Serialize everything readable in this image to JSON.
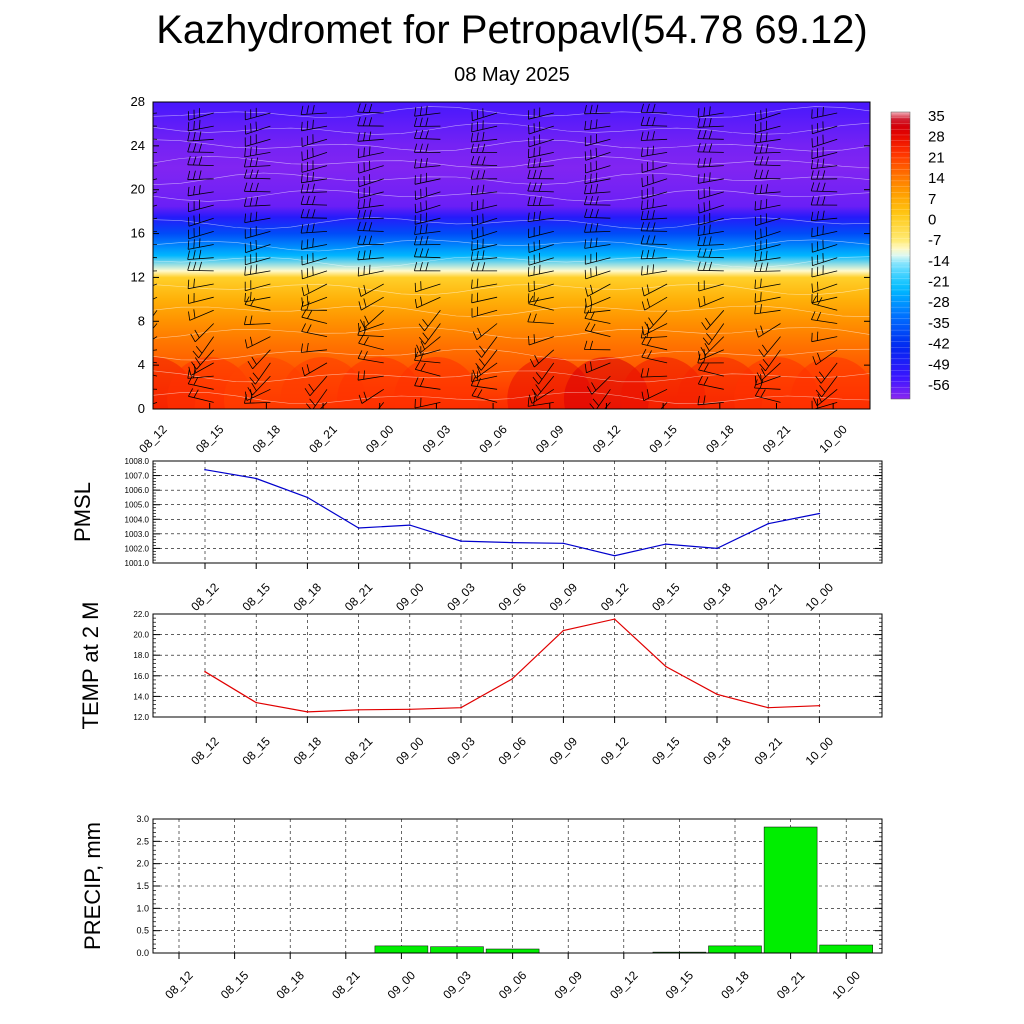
{
  "header": {
    "title": "Kazhydromet for Petropavl(54.78 69.12)",
    "subtitle": "08 May 2025"
  },
  "colors": {
    "pmsl_line": "#0000cc",
    "temp_line": "#e00000",
    "precip_bar": "#00ee00"
  },
  "chart_data": [
    {
      "type": "heatmap",
      "name": "vertical-cross-section",
      "x": [
        "08_12",
        "08_15",
        "08_18",
        "08_21",
        "09_00",
        "09_03",
        "09_06",
        "09_09",
        "09_12",
        "09_15",
        "09_18",
        "09_21",
        "10_00"
      ],
      "y_ticks": [
        "0",
        "4",
        "8",
        "12",
        "16",
        "20",
        "24",
        "28"
      ],
      "ylim": [
        0,
        28
      ],
      "colorbar": {
        "labels": [
          "35",
          "28",
          "21",
          "14",
          "7",
          "0",
          "-7",
          "-14",
          "-21",
          "-28",
          "-35",
          "-42",
          "-49",
          "-56"
        ],
        "range": [
          -63,
          35
        ]
      },
      "profile": {
        "heights": [
          0,
          2,
          4,
          6,
          8,
          10,
          12,
          12.6,
          14,
          16,
          17.5,
          18.5,
          20,
          22,
          24,
          26,
          28
        ],
        "values": [
          22,
          19,
          16,
          13,
          9,
          4,
          -2,
          -12,
          -26,
          -40,
          -52,
          -60,
          -61,
          -62,
          -61,
          -59,
          -57
        ]
      },
      "surface_anomaly": [
        2,
        -1,
        -3,
        -2,
        -1,
        -1,
        0,
        4,
        7,
        3,
        1,
        -1,
        -1
      ]
    },
    {
      "type": "line",
      "name": "pmsl",
      "ylabel": "PMSL",
      "categories": [
        "08_12",
        "08_15",
        "08_18",
        "08_21",
        "09_00",
        "09_03",
        "09_06",
        "09_09",
        "09_12",
        "09_15",
        "09_18",
        "09_21",
        "10_00"
      ],
      "values": [
        1007.4,
        1006.8,
        1005.5,
        1003.4,
        1003.6,
        1002.5,
        1002.4,
        1002.35,
        1001.5,
        1002.3,
        1002.0,
        1003.7,
        1004.4
      ],
      "ylim": [
        1001.0,
        1008.0
      ],
      "y_ticks": [
        "1001.0",
        "1002.0",
        "1003.0",
        "1004.0",
        "1005.0",
        "1006.0",
        "1007.0",
        "1008.0"
      ]
    },
    {
      "type": "line",
      "name": "temp-2m",
      "ylabel": "TEMP at 2 M",
      "categories": [
        "08_12",
        "08_15",
        "08_18",
        "08_21",
        "09_00",
        "09_03",
        "09_06",
        "09_09",
        "09_12",
        "09_15",
        "09_18",
        "09_21",
        "10_00"
      ],
      "values": [
        16.4,
        13.4,
        12.5,
        12.7,
        12.75,
        12.9,
        15.7,
        20.4,
        21.5,
        16.9,
        14.2,
        12.9,
        13.1
      ],
      "ylim": [
        12.0,
        22.0
      ],
      "y_ticks": [
        "12.0",
        "14.0",
        "16.0",
        "18.0",
        "20.0",
        "22.0"
      ]
    },
    {
      "type": "bar",
      "name": "precip",
      "ylabel": "PRECIP, mm",
      "categories": [
        "08_12",
        "08_15",
        "08_18",
        "08_21",
        "09_00",
        "09_03",
        "09_06",
        "09_09",
        "09_12",
        "09_15",
        "09_18",
        "09_21",
        "10_00"
      ],
      "values": [
        0,
        0,
        0,
        0,
        0.16,
        0.14,
        0.09,
        0,
        0,
        0.02,
        0.16,
        2.82,
        0.18
      ],
      "ylim": [
        0,
        3.0
      ],
      "y_ticks": [
        "0.0",
        "0.5",
        "1.0",
        "1.5",
        "2.0",
        "2.5",
        "3.0"
      ]
    }
  ]
}
